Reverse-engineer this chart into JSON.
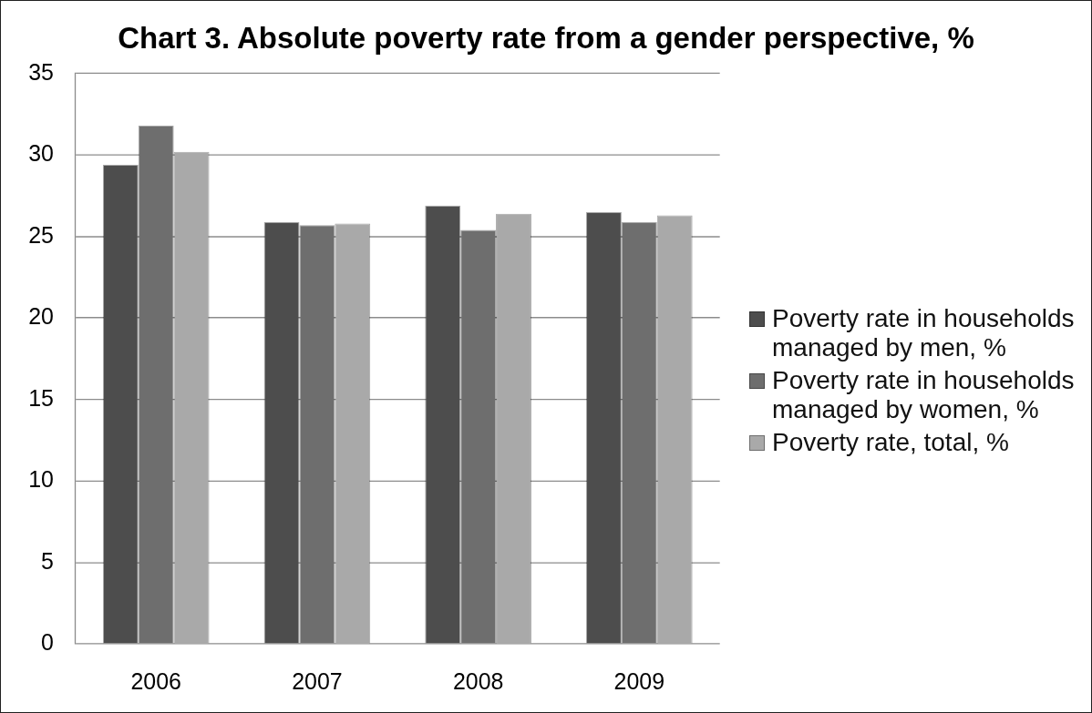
{
  "chart_data": {
    "type": "bar",
    "title": "Chart 3. Absolute poverty rate from a gender perspective, %",
    "categories": [
      "2006",
      "2007",
      "2008",
      "2009"
    ],
    "series": [
      {
        "name": "Poverty rate in households managed by men, %",
        "color": "#4d4d4d",
        "values": [
          29.4,
          25.9,
          26.9,
          26.5
        ]
      },
      {
        "name": "Poverty rate in households managed by women, %",
        "color": "#6e6e6e",
        "values": [
          31.8,
          25.7,
          25.4,
          25.9
        ]
      },
      {
        "name": "Poverty rate, total, %",
        "color": "#a9a9a9",
        "values": [
          30.2,
          25.8,
          26.4,
          26.3
        ]
      }
    ],
    "ylim": [
      0,
      35
    ],
    "yticks": [
      0,
      5,
      10,
      15,
      20,
      25,
      30,
      35
    ],
    "grid": "y",
    "legend": "right"
  }
}
